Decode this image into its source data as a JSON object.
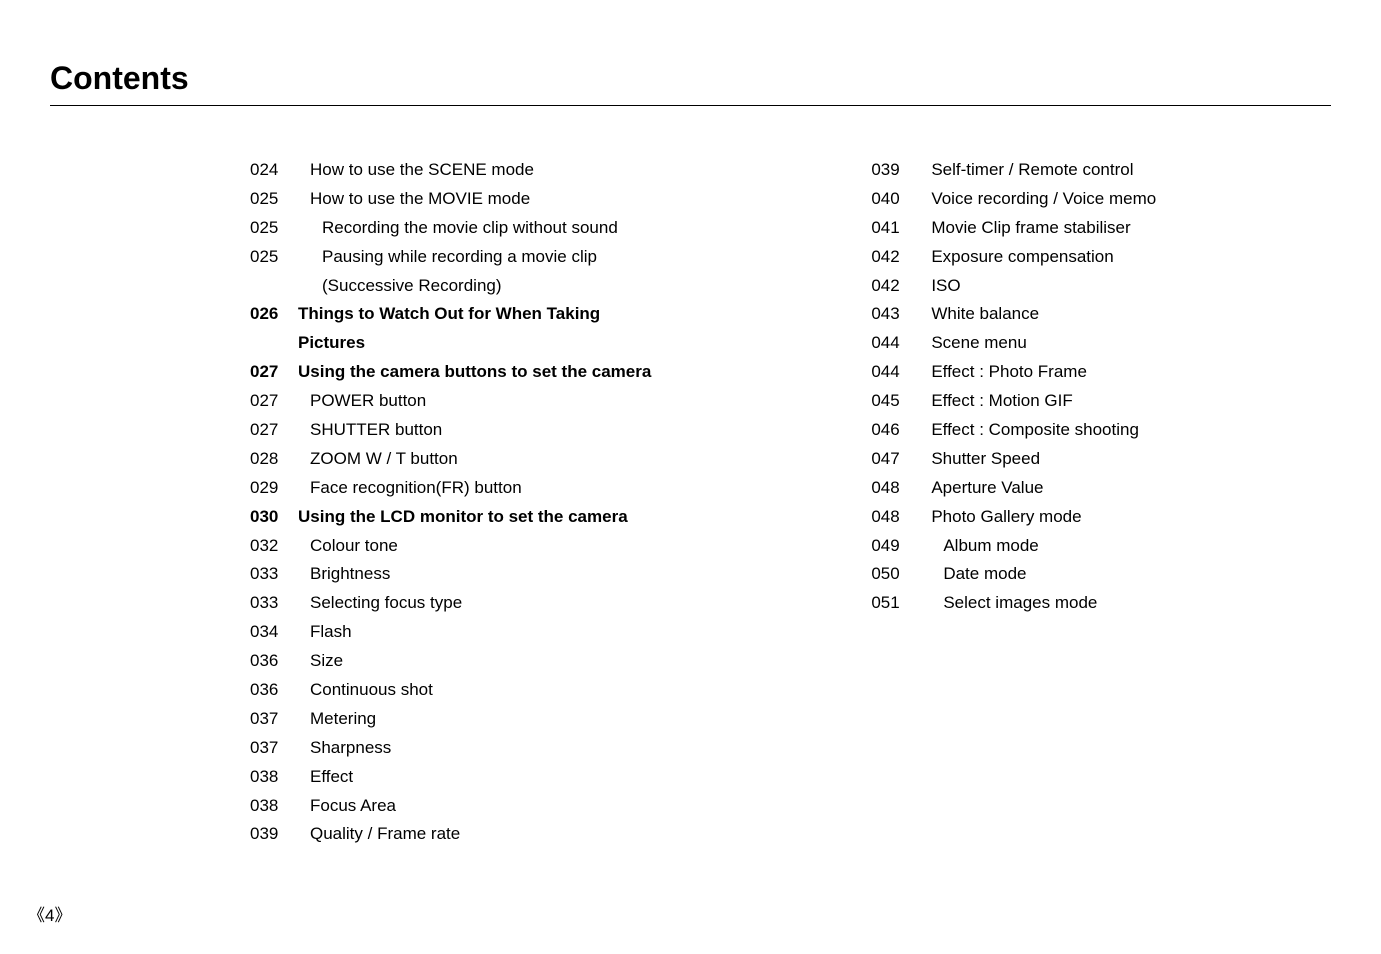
{
  "title": "Contents",
  "page_marker": "《4》",
  "left_col": [
    {
      "page": "024",
      "text": "How to use the SCENE mode",
      "indent": 1,
      "bold": false
    },
    {
      "page": "025",
      "text": "How to use the MOVIE mode",
      "indent": 1,
      "bold": false
    },
    {
      "page": "025",
      "text": "Recording the movie clip without sound",
      "indent": 2,
      "bold": false
    },
    {
      "page": "025",
      "text": "Pausing while recording a movie clip\n(Successive Recording)",
      "indent": 2,
      "bold": false
    },
    {
      "page": "026",
      "text": "Things to Watch Out for When Taking\nPictures",
      "indent": 0,
      "bold": true
    },
    {
      "page": "027",
      "text": "Using the camera buttons to set the camera",
      "indent": 0,
      "bold": true
    },
    {
      "page": "027",
      "text": "POWER button",
      "indent": 1,
      "bold": false
    },
    {
      "page": "027",
      "text": "SHUTTER button",
      "indent": 1,
      "bold": false
    },
    {
      "page": "028",
      "text": "ZOOM W / T button",
      "indent": 1,
      "bold": false
    },
    {
      "page": "029",
      "text": "Face recognition(FR) button",
      "indent": 1,
      "bold": false
    },
    {
      "page": "030",
      "text": "Using the LCD monitor to set the camera",
      "indent": 0,
      "bold": true
    },
    {
      "page": "032",
      "text": "Colour tone",
      "indent": 1,
      "bold": false
    },
    {
      "page": "033",
      "text": "Brightness",
      "indent": 1,
      "bold": false
    },
    {
      "page": "033",
      "text": "Selecting focus type",
      "indent": 1,
      "bold": false
    },
    {
      "page": "034",
      "text": "Flash",
      "indent": 1,
      "bold": false
    },
    {
      "page": "036",
      "text": "Size",
      "indent": 1,
      "bold": false
    },
    {
      "page": "036",
      "text": "Continuous shot",
      "indent": 1,
      "bold": false
    },
    {
      "page": "037",
      "text": "Metering",
      "indent": 1,
      "bold": false
    },
    {
      "page": "037",
      "text": "Sharpness",
      "indent": 1,
      "bold": false
    },
    {
      "page": "038",
      "text": "Effect",
      "indent": 1,
      "bold": false
    },
    {
      "page": "038",
      "text": "Focus Area",
      "indent": 1,
      "bold": false
    },
    {
      "page": "039",
      "text": "Quality / Frame rate",
      "indent": 1,
      "bold": false
    }
  ],
  "right_col": [
    {
      "page": "039",
      "text": "Self-timer / Remote control",
      "indent": 1,
      "bold": false
    },
    {
      "page": "040",
      "text": "Voice recording / Voice memo",
      "indent": 1,
      "bold": false
    },
    {
      "page": "041",
      "text": "Movie Clip frame stabiliser",
      "indent": 1,
      "bold": false
    },
    {
      "page": "042",
      "text": "Exposure compensation",
      "indent": 1,
      "bold": false
    },
    {
      "page": "042",
      "text": "ISO",
      "indent": 1,
      "bold": false
    },
    {
      "page": "043",
      "text": "White balance",
      "indent": 1,
      "bold": false
    },
    {
      "page": "044",
      "text": "Scene menu",
      "indent": 1,
      "bold": false
    },
    {
      "page": "044",
      "text": "Effect : Photo Frame",
      "indent": 1,
      "bold": false
    },
    {
      "page": "045",
      "text": "Effect : Motion GIF",
      "indent": 1,
      "bold": false
    },
    {
      "page": "046",
      "text": "Effect : Composite shooting",
      "indent": 1,
      "bold": false
    },
    {
      "page": "047",
      "text": "Shutter Speed",
      "indent": 1,
      "bold": false
    },
    {
      "page": "048",
      "text": "Aperture Value",
      "indent": 1,
      "bold": false
    },
    {
      "page": "048",
      "text": "Photo Gallery mode",
      "indent": 1,
      "bold": false
    },
    {
      "page": "049",
      "text": "Album mode",
      "indent": 2,
      "bold": false
    },
    {
      "page": "050",
      "text": "Date mode",
      "indent": 2,
      "bold": false
    },
    {
      "page": "051",
      "text": "Select images mode",
      "indent": 2,
      "bold": false
    }
  ]
}
